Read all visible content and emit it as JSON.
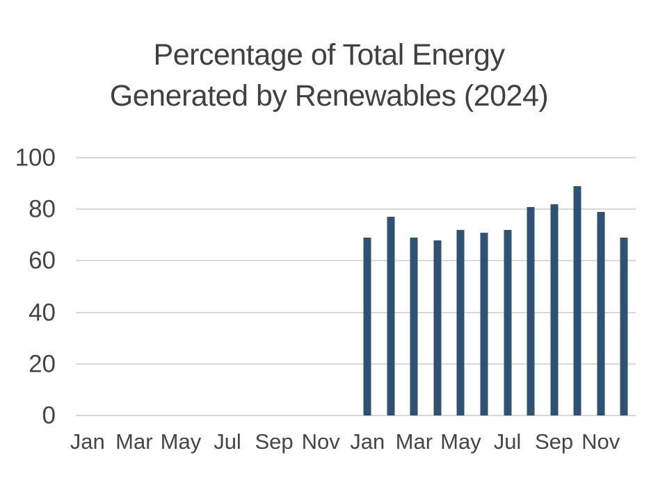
{
  "title": {
    "line1": "Percentage of Total Energy",
    "line2": "Generated by Renewables (2024)"
  },
  "chart_data": {
    "type": "bar",
    "title": "Percentage of Total Energy Generated by Renewables (2024)",
    "x_axis": {
      "slot_count": 24,
      "description": "24 monthly slots spanning two years; only every other month is labeled",
      "tick_slots": [
        0,
        2,
        4,
        6,
        8,
        10,
        12,
        14,
        16,
        18,
        20,
        22
      ],
      "tick_labels": [
        "Jan",
        "Mar",
        "May",
        "Jul",
        "Sep",
        "Nov",
        "Jan",
        "Mar",
        "May",
        "Jul",
        "Sep",
        "Nov"
      ]
    },
    "y_axis": {
      "min": 0,
      "max": 100,
      "tick_step": 20,
      "ticks": [
        0,
        20,
        40,
        60,
        80,
        100
      ],
      "tick_labels": [
        "0",
        "20",
        "40",
        "60",
        "80",
        "100"
      ]
    },
    "series": [
      {
        "name": "2024",
        "start_slot": 12,
        "categories": [
          "Jan",
          "Feb",
          "Mar",
          "Apr",
          "May",
          "Jun",
          "Jul",
          "Aug",
          "Sep",
          "Oct",
          "Nov",
          "Dec"
        ],
        "values": [
          69,
          77,
          69,
          68,
          72,
          71,
          72,
          81,
          82,
          89,
          79,
          69
        ]
      }
    ],
    "legend": "none",
    "grid": "horizontal",
    "colors": {
      "bar": "#2F5274",
      "gridline": "#D9D9D9",
      "title_text": "#404040",
      "axis_text": "#454545"
    }
  }
}
